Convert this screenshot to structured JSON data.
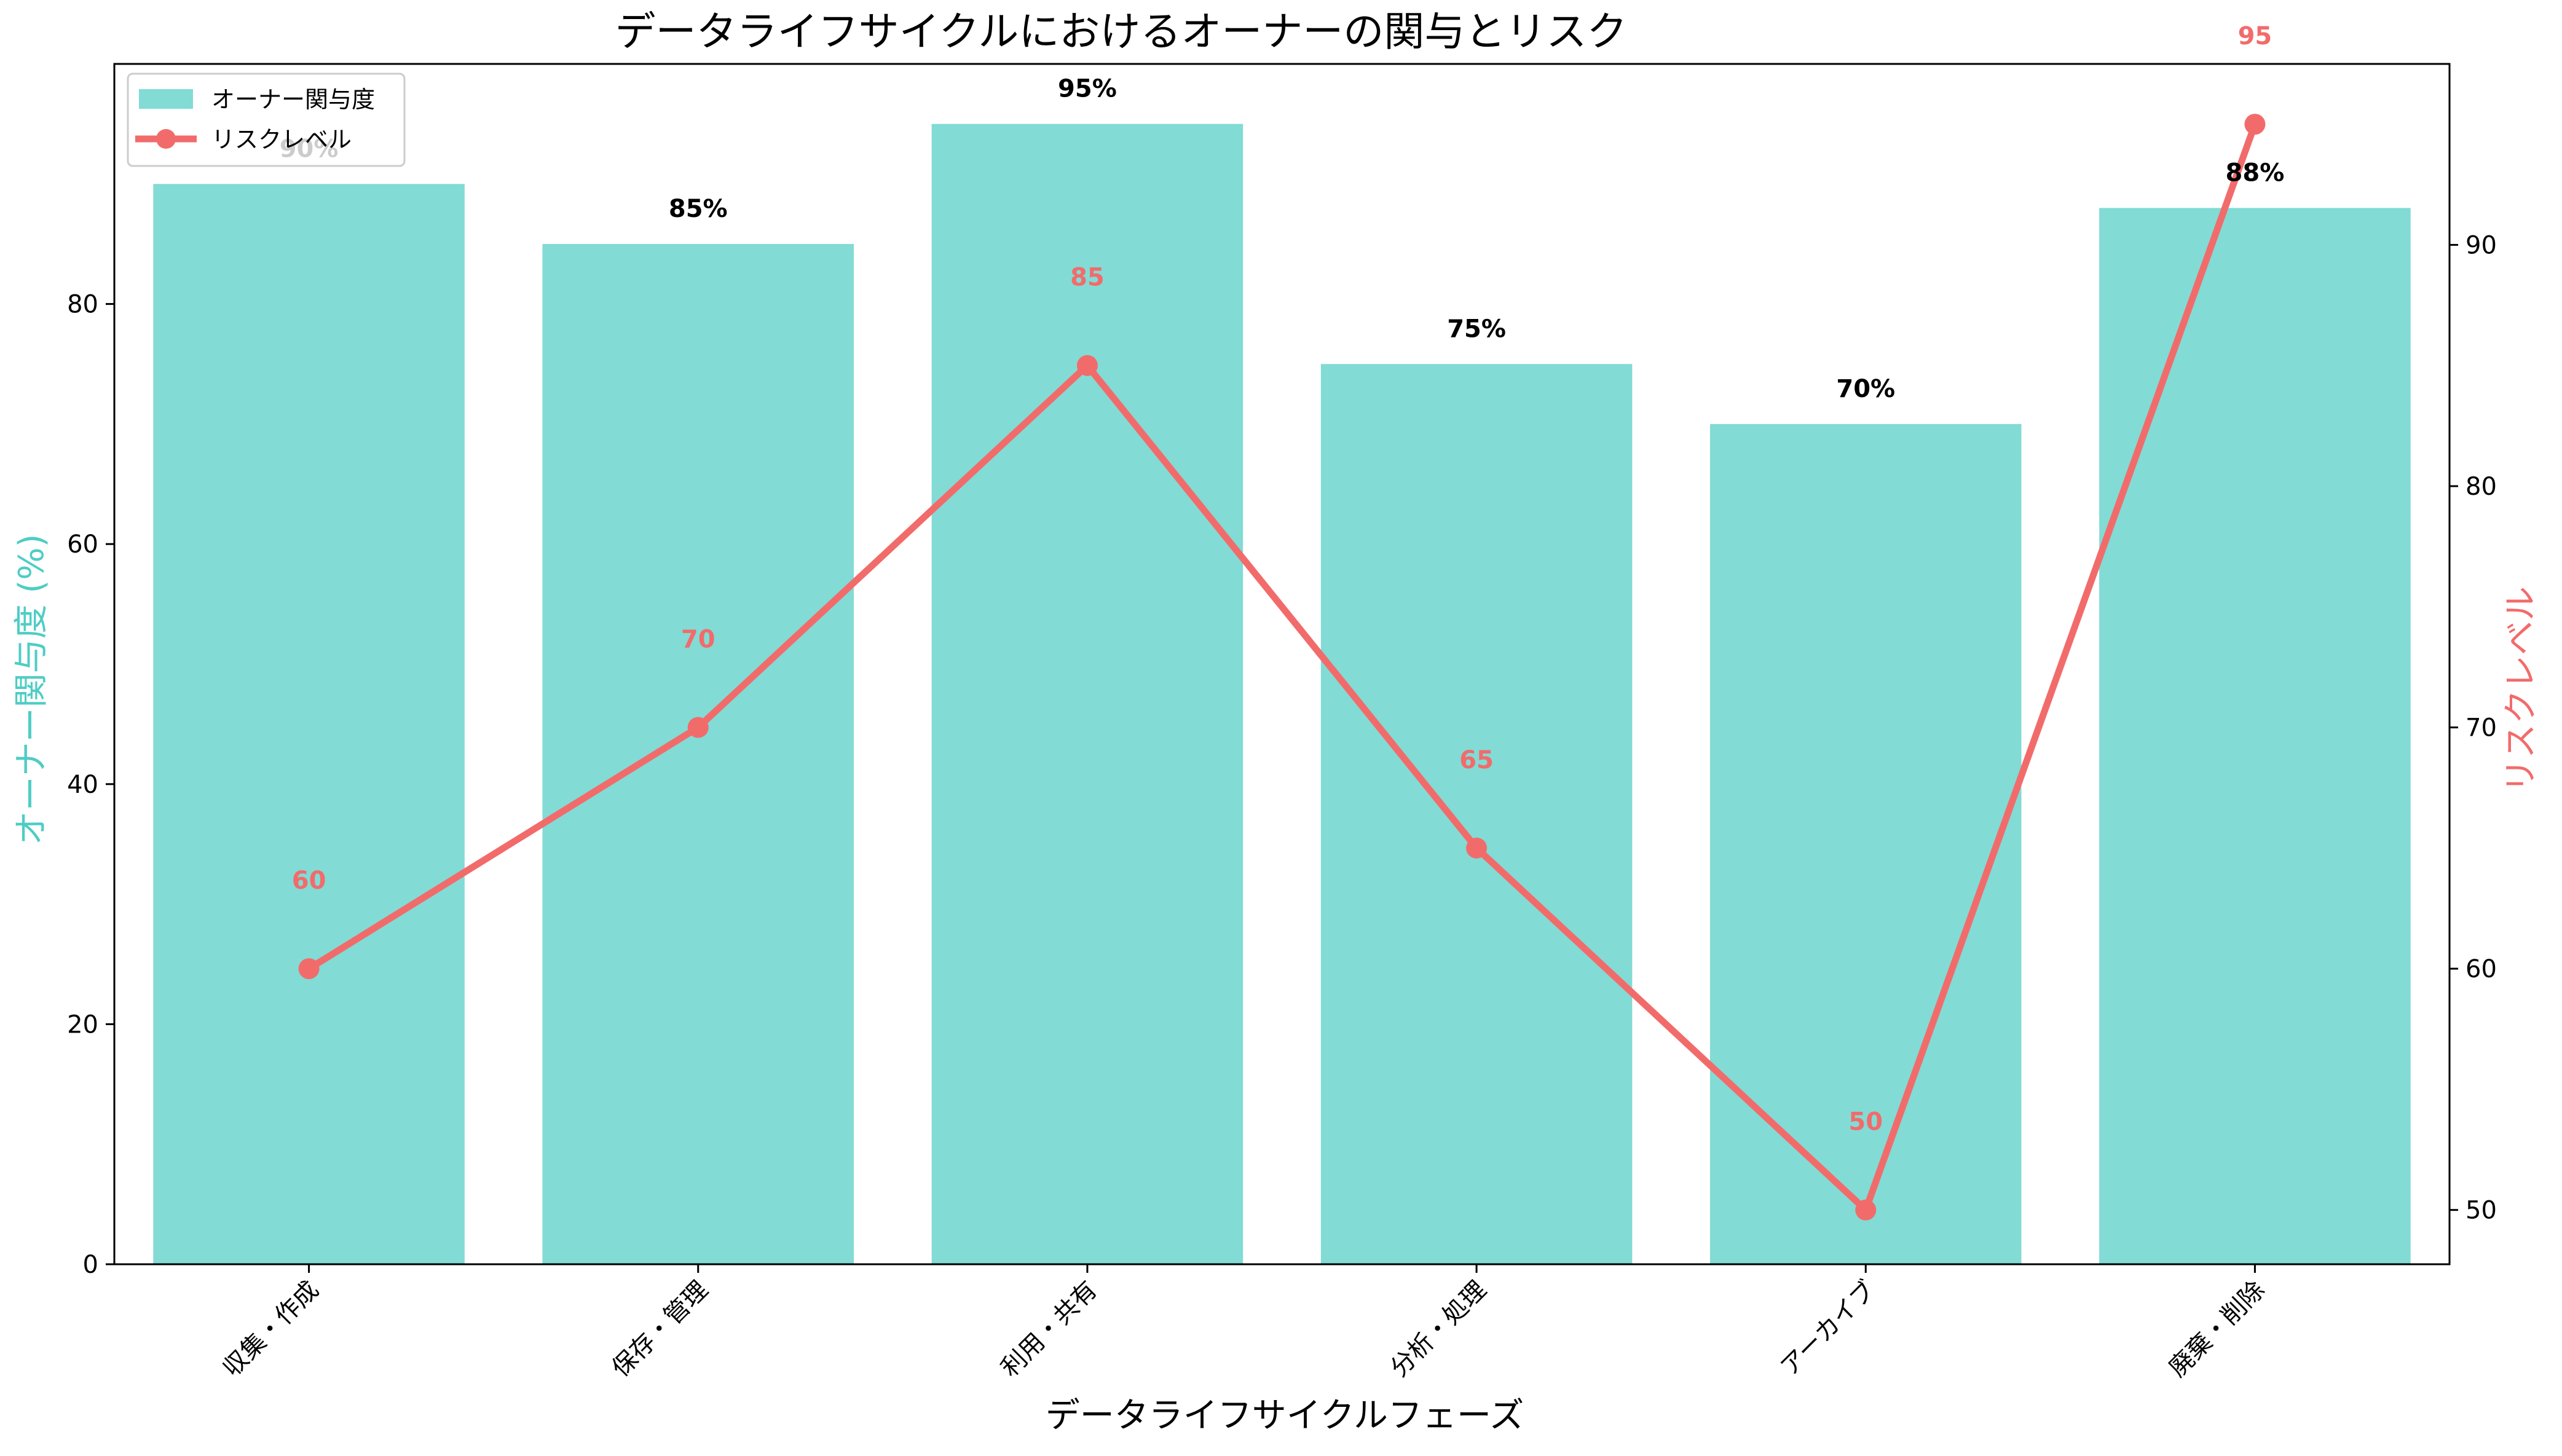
{
  "chart_data": {
    "type": "bar",
    "title": "データライフサイクルにおけるオーナーの関与とリスク",
    "xlabel": "データライフサイクルフェーズ",
    "ylabel_left": "オーナー関与度 (%)",
    "ylabel_right": "リスクレベル",
    "categories": [
      "収集・作成",
      "保存・管理",
      "利用・共有",
      "分析・処理",
      "アーカイブ",
      "廃棄・削除"
    ],
    "series": [
      {
        "name": "オーナー関与度",
        "type": "bar",
        "axis": "left",
        "values": [
          90,
          85,
          95,
          75,
          70,
          88
        ],
        "labels": [
          "90%",
          "85%",
          "95%",
          "75%",
          "70%",
          "88%"
        ],
        "color": "#82dbd5"
      },
      {
        "name": "リスクレベル",
        "type": "line",
        "axis": "right",
        "values": [
          60,
          70,
          85,
          65,
          50,
          95
        ],
        "labels": [
          "60",
          "70",
          "85",
          "65",
          "50",
          "95"
        ],
        "color": "#f26b6b"
      }
    ],
    "ylim_left": [
      0,
      100
    ],
    "yticks_left": [
      0,
      20,
      40,
      60,
      80
    ],
    "ylim_right": [
      47.75,
      97.5
    ],
    "yticks_right": [
      50,
      60,
      70,
      80,
      90
    ],
    "grid": false,
    "legend": "top-left",
    "colors": {
      "left_axis_label": "#4ecdc4",
      "right_axis_label": "#f26b6b",
      "line_label": "#f26b6b"
    }
  }
}
